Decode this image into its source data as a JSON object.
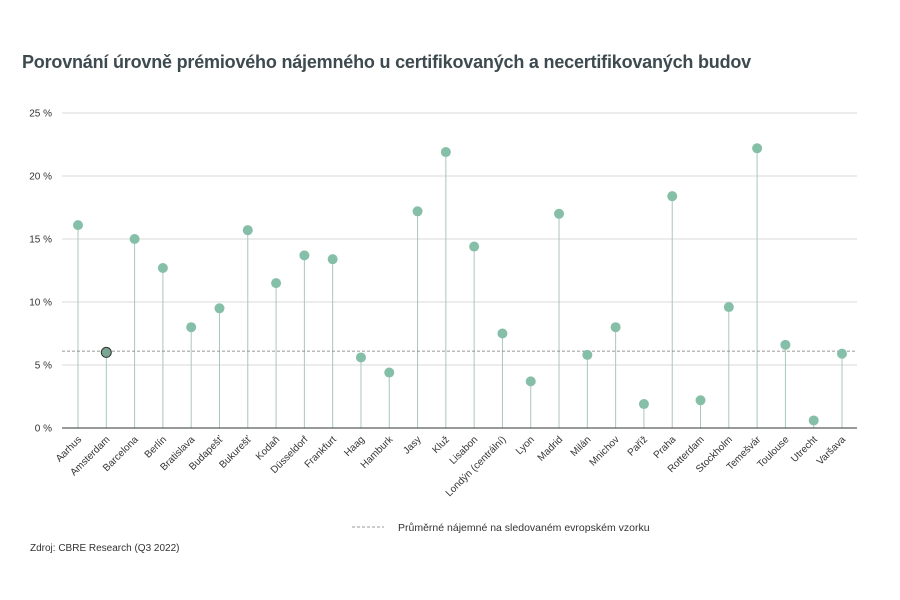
{
  "chart_data": {
    "type": "lollipop",
    "title": "Porovnání úrovně prémiového nájemného u certifikovaných a necertifikovaných budov",
    "xlabel": "",
    "ylabel": "",
    "ylim": [
      0,
      25
    ],
    "yticks": [
      0,
      5,
      10,
      15,
      20,
      25
    ],
    "ytick_labels": [
      "0 %",
      "5 %",
      "10 %",
      "15 %",
      "20 %",
      "25 %"
    ],
    "grid": true,
    "categories": [
      "Aarhus",
      "Amsterdam",
      "Barcelona",
      "Berlín",
      "Bratislava",
      "Budapešť",
      "Bukurešť",
      "Kodaň",
      "Düsseldorf",
      "Frankfurt",
      "Haag",
      "Hamburk",
      "Jasy",
      "Kluž",
      "Lisabon",
      "Londýn (centrální)",
      "Lyon",
      "Madrid",
      "Milán",
      "Mnichov",
      "Paříž",
      "Praha",
      "Rotterdam",
      "Stockholm",
      "Temešvár",
      "Toulouse",
      "Utrecht",
      "Varšava"
    ],
    "values": [
      16.1,
      6.0,
      15.0,
      12.7,
      8.0,
      9.5,
      15.7,
      11.5,
      13.7,
      13.4,
      5.6,
      4.4,
      17.2,
      21.9,
      14.4,
      7.5,
      3.7,
      17.0,
      5.8,
      8.0,
      1.9,
      18.4,
      2.2,
      9.6,
      22.2,
      6.6,
      0.6,
      5.9
    ],
    "highlight_category": "Amsterdam",
    "reference_line": {
      "value": 6.1,
      "label": "Průměrné nájemné na sledovaném evropském vzorku",
      "style": "dashed"
    },
    "legend_position": "bottom",
    "colors": {
      "marker": "#86bfa8",
      "stem": "#a9c7c0",
      "grid": "#d9d9d9",
      "axis": "#333333",
      "reference": "#777777",
      "highlight": "#7aa693"
    }
  },
  "source": "Zdroj: CBRE Research (Q3 2022)"
}
